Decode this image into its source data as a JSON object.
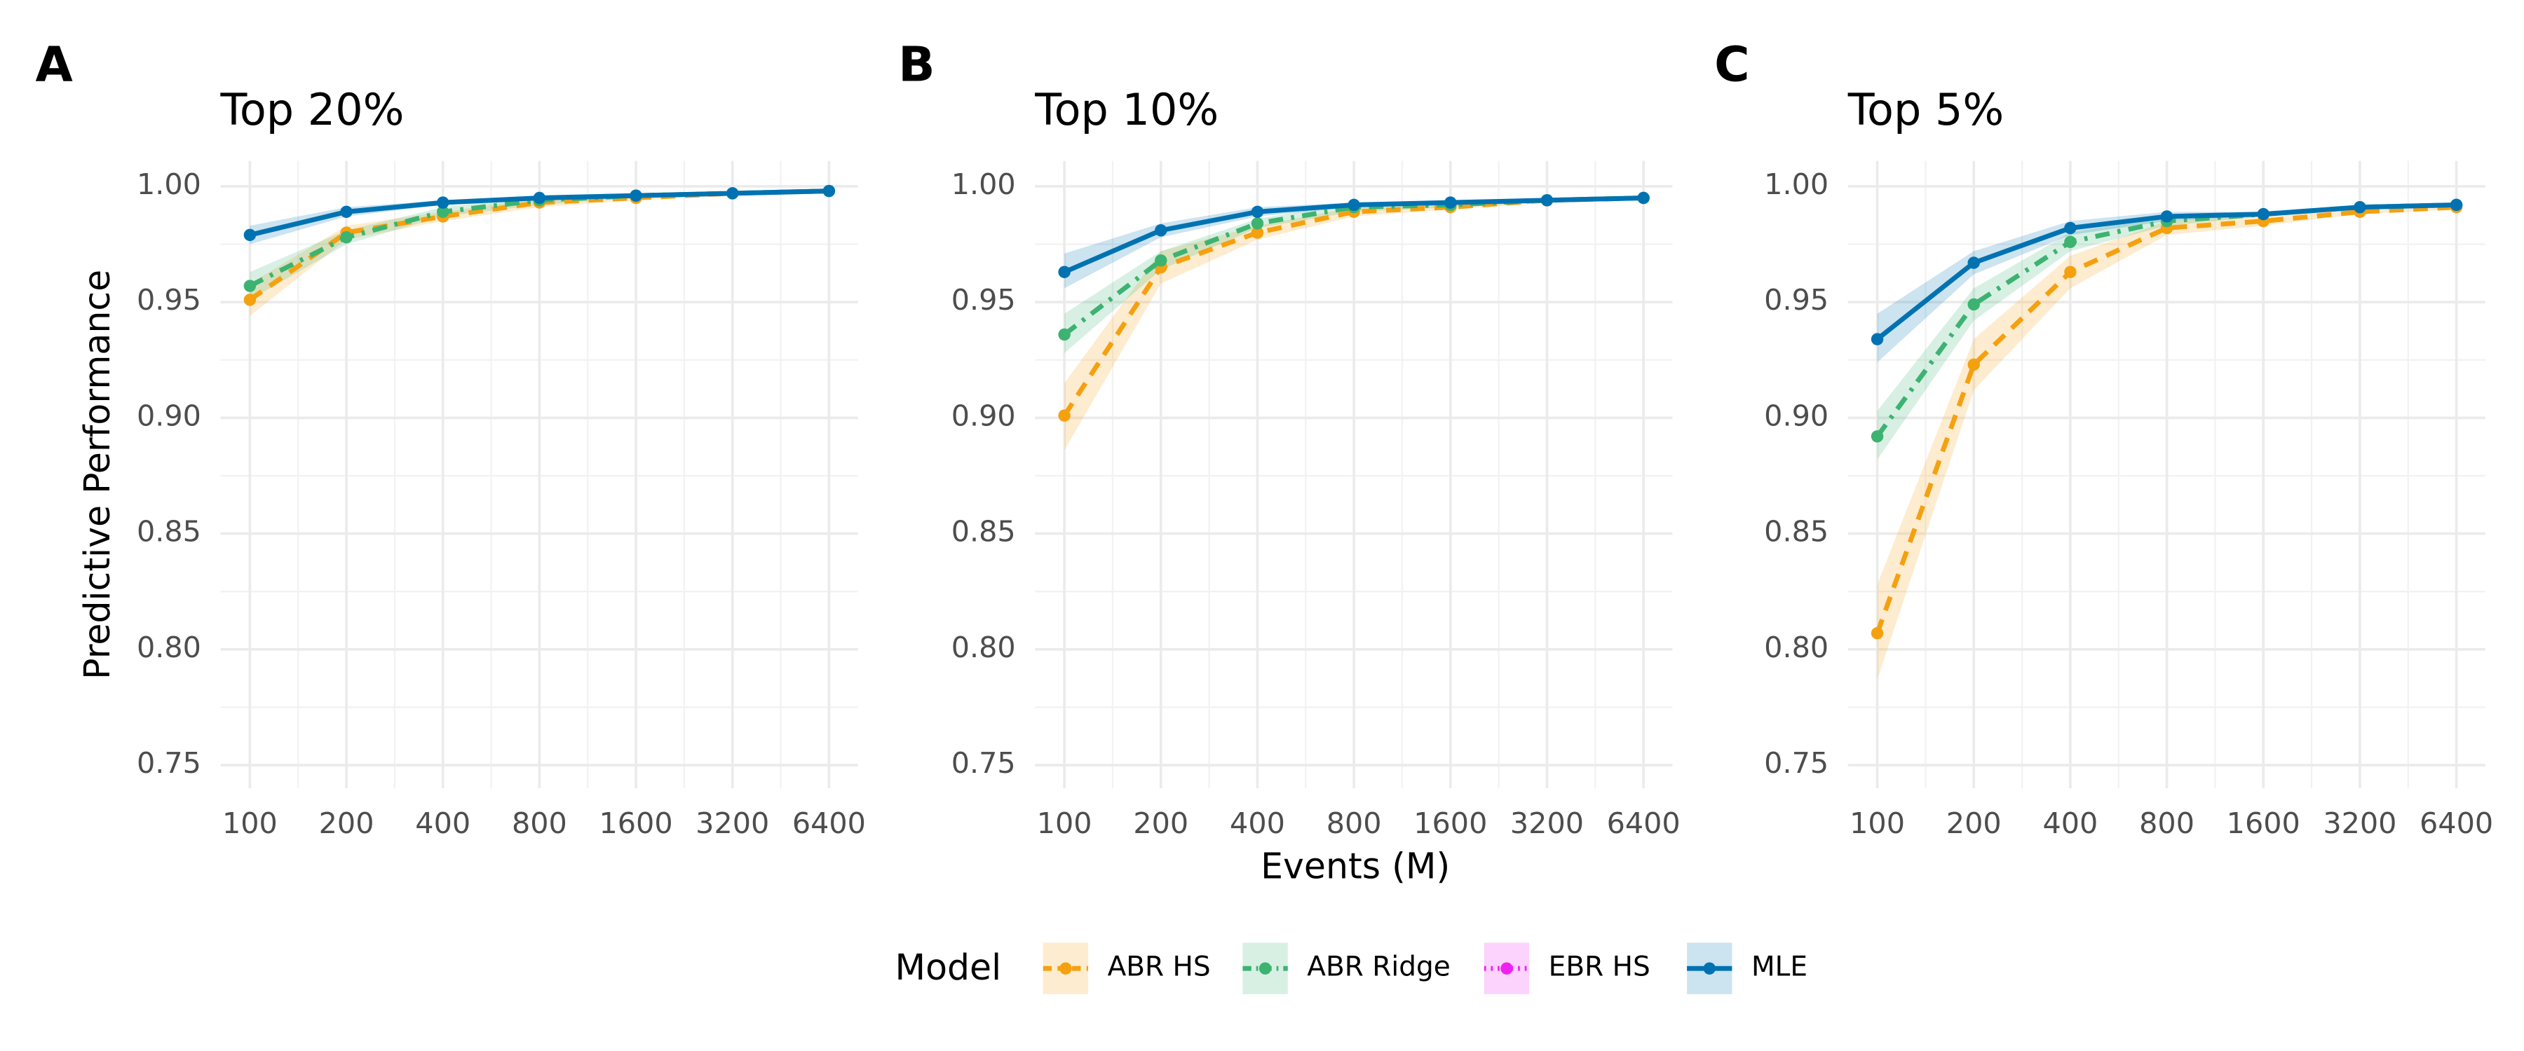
{
  "chart_data": [
    {
      "type": "line",
      "panel_label": "A",
      "title": "Top 20%",
      "ylabel": "Predictive Performance",
      "x": [
        100,
        200,
        400,
        800,
        1600,
        3200,
        6400
      ],
      "xscale": "log",
      "xlim": [
        81,
        7880
      ],
      "xticks": [
        100,
        200,
        400,
        800,
        1600,
        3200,
        6400
      ],
      "ylim": [
        0.74,
        1.011
      ],
      "yticks": [
        {
          "value": 0.75,
          "label": "0.75"
        },
        {
          "value": 0.8,
          "label": "0.80"
        },
        {
          "value": 0.85,
          "label": "0.85"
        },
        {
          "value": 0.9,
          "label": "0.90"
        },
        {
          "value": 0.95,
          "label": "0.95"
        },
        {
          "value": 1,
          "label": "1.00"
        }
      ],
      "grid": true,
      "legend_title": "Model",
      "series": [
        {
          "name": "ABR HS",
          "color": "#f5a00f",
          "values": [
            0.951,
            0.98,
            0.987,
            0.993,
            0.995,
            0.997,
            0.998
          ],
          "lower": [
            0.944,
            0.977,
            0.985,
            0.991,
            0.994,
            0.996,
            0.997
          ],
          "upper": [
            0.958,
            0.983,
            0.989,
            0.995,
            0.996,
            0.998,
            0.999
          ]
        },
        {
          "name": "ABR Ridge",
          "color": "#3cb371",
          "values": [
            0.957,
            0.978,
            0.989,
            0.994,
            0.996,
            0.997,
            0.998
          ],
          "lower": [
            0.951,
            0.975,
            0.987,
            0.992,
            0.995,
            0.996,
            0.997
          ],
          "upper": [
            0.963,
            0.981,
            0.991,
            0.996,
            0.997,
            0.998,
            0.999
          ]
        },
        {
          "name": "EBR HS",
          "color": "#ee22ee",
          "values": [
            null,
            null,
            null,
            null,
            null,
            null,
            null
          ]
        },
        {
          "name": "MLE",
          "color": "#0072b2",
          "values": [
            0.979,
            0.989,
            0.993,
            0.995,
            0.996,
            0.997,
            0.998
          ],
          "lower": [
            0.975,
            0.987,
            0.992,
            0.994,
            0.995,
            0.996,
            0.997
          ],
          "upper": [
            0.983,
            0.991,
            0.994,
            0.996,
            0.997,
            0.998,
            0.999
          ]
        }
      ]
    },
    {
      "type": "line",
      "panel_label": "B",
      "title": "Top 10%",
      "xlabel": "Events (M)",
      "x": [
        100,
        200,
        400,
        800,
        1600,
        3200,
        6400
      ],
      "xscale": "log",
      "xlim": [
        81,
        7880
      ],
      "xticks": [
        100,
        200,
        400,
        800,
        1600,
        3200,
        6400
      ],
      "ylim": [
        0.74,
        1.011
      ],
      "yticks": [
        {
          "value": 0.75,
          "label": "0.75"
        },
        {
          "value": 0.8,
          "label": "0.80"
        },
        {
          "value": 0.85,
          "label": "0.85"
        },
        {
          "value": 0.9,
          "label": "0.90"
        },
        {
          "value": 0.95,
          "label": "0.95"
        },
        {
          "value": 1,
          "label": "1.00"
        }
      ],
      "grid": true,
      "series": [
        {
          "color": "#f5a00f",
          "values": [
            0.901,
            0.965,
            0.98,
            0.989,
            0.991,
            0.994,
            0.995
          ],
          "lower": [
            0.886,
            0.958,
            0.977,
            0.987,
            0.99,
            0.993,
            0.994
          ],
          "upper": [
            0.915,
            0.972,
            0.983,
            0.991,
            0.992,
            0.995,
            0.996
          ]
        },
        {
          "color": "#3cb371",
          "values": [
            0.936,
            0.968,
            0.984,
            0.991,
            0.992,
            0.994,
            0.995
          ],
          "lower": [
            0.928,
            0.964,
            0.982,
            0.989,
            0.991,
            0.993,
            0.994
          ],
          "upper": [
            0.945,
            0.972,
            0.986,
            0.993,
            0.993,
            0.995,
            0.996
          ]
        },
        {
          "color": "#ee22ee",
          "values": [
            null,
            null,
            null,
            null,
            null,
            null,
            null
          ]
        },
        {
          "color": "#0072b2",
          "values": [
            0.963,
            0.981,
            0.989,
            0.992,
            0.993,
            0.994,
            0.995
          ],
          "lower": [
            0.956,
            0.978,
            0.987,
            0.991,
            0.992,
            0.993,
            0.994
          ],
          "upper": [
            0.971,
            0.984,
            0.991,
            0.993,
            0.994,
            0.995,
            0.996
          ]
        }
      ]
    },
    {
      "type": "line",
      "panel_label": "C",
      "title": "Top 5%",
      "x": [
        100,
        200,
        400,
        800,
        1600,
        3200,
        6400
      ],
      "xscale": "log",
      "xlim": [
        81,
        7880
      ],
      "xticks": [
        100,
        200,
        400,
        800,
        1600,
        3200,
        6400
      ],
      "ylim": [
        0.74,
        1.011
      ],
      "yticks": [
        {
          "value": 0.75,
          "label": "0.75"
        },
        {
          "value": 0.8,
          "label": "0.80"
        },
        {
          "value": 0.85,
          "label": "0.85"
        },
        {
          "value": 0.9,
          "label": "0.90"
        },
        {
          "value": 0.95,
          "label": "0.95"
        },
        {
          "value": 1,
          "label": "1.00"
        }
      ],
      "grid": true,
      "series": [
        {
          "color": "#f5a00f",
          "values": [
            0.807,
            0.923,
            0.963,
            0.982,
            0.985,
            0.989,
            0.991
          ],
          "lower": [
            0.787,
            0.912,
            0.956,
            0.979,
            0.983,
            0.988,
            0.99
          ],
          "upper": [
            0.828,
            0.934,
            0.97,
            0.985,
            0.987,
            0.99,
            0.992
          ]
        },
        {
          "color": "#3cb371",
          "values": [
            0.892,
            0.949,
            0.976,
            0.985,
            0.988,
            0.991,
            0.992
          ],
          "lower": [
            0.882,
            0.942,
            0.972,
            0.983,
            0.987,
            0.99,
            0.991
          ],
          "upper": [
            0.903,
            0.956,
            0.98,
            0.987,
            0.989,
            0.992,
            0.993
          ]
        },
        {
          "color": "#ee22ee",
          "values": [
            null,
            null,
            null,
            null,
            null,
            null,
            null
          ]
        },
        {
          "color": "#0072b2",
          "values": [
            0.934,
            0.967,
            0.982,
            0.987,
            0.988,
            0.991,
            0.992
          ],
          "lower": [
            0.924,
            0.962,
            0.979,
            0.985,
            0.987,
            0.99,
            0.991
          ],
          "upper": [
            0.945,
            0.972,
            0.985,
            0.989,
            0.989,
            0.992,
            0.993
          ]
        }
      ]
    }
  ]
}
